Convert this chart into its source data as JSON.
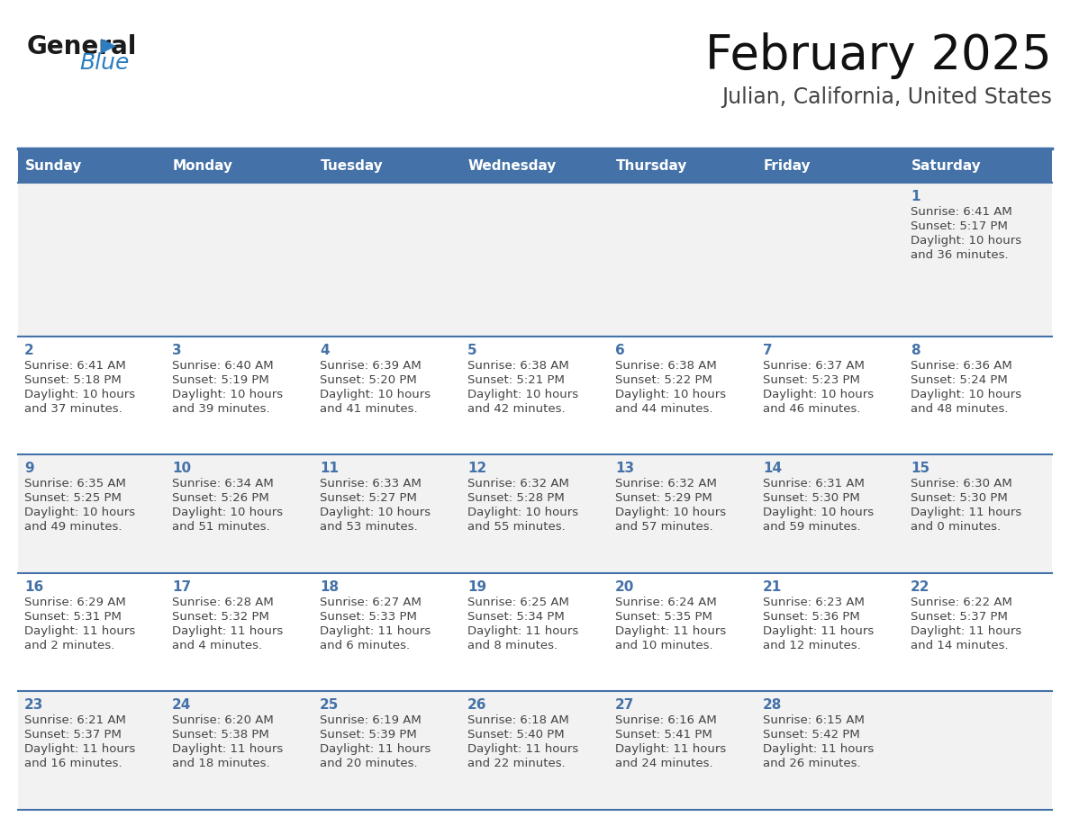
{
  "title": "February 2025",
  "subtitle": "Julian, California, United States",
  "header_bg_color": "#4472A8",
  "header_text_color": "#FFFFFF",
  "row_bg_colors": [
    "#F2F2F2",
    "#FFFFFF",
    "#F2F2F2",
    "#FFFFFF",
    "#F2F2F2"
  ],
  "border_color": "#4472A8",
  "day_number_color": "#4472A8",
  "cell_text_color": "#444444",
  "days_of_week": [
    "Sunday",
    "Monday",
    "Tuesday",
    "Wednesday",
    "Thursday",
    "Friday",
    "Saturday"
  ],
  "logo_general_color": "#1A1A1A",
  "logo_blue_color": "#2B7EC1",
  "calendar_data": [
    [
      null,
      null,
      null,
      null,
      null,
      null,
      {
        "day": "1",
        "sunrise": "6:41 AM",
        "sunset": "5:17 PM",
        "daylight_h": "10 hours",
        "daylight_m": "and 36 minutes."
      }
    ],
    [
      {
        "day": "2",
        "sunrise": "6:41 AM",
        "sunset": "5:18 PM",
        "daylight_h": "10 hours",
        "daylight_m": "and 37 minutes."
      },
      {
        "day": "3",
        "sunrise": "6:40 AM",
        "sunset": "5:19 PM",
        "daylight_h": "10 hours",
        "daylight_m": "and 39 minutes."
      },
      {
        "day": "4",
        "sunrise": "6:39 AM",
        "sunset": "5:20 PM",
        "daylight_h": "10 hours",
        "daylight_m": "and 41 minutes."
      },
      {
        "day": "5",
        "sunrise": "6:38 AM",
        "sunset": "5:21 PM",
        "daylight_h": "10 hours",
        "daylight_m": "and 42 minutes."
      },
      {
        "day": "6",
        "sunrise": "6:38 AM",
        "sunset": "5:22 PM",
        "daylight_h": "10 hours",
        "daylight_m": "and 44 minutes."
      },
      {
        "day": "7",
        "sunrise": "6:37 AM",
        "sunset": "5:23 PM",
        "daylight_h": "10 hours",
        "daylight_m": "and 46 minutes."
      },
      {
        "day": "8",
        "sunrise": "6:36 AM",
        "sunset": "5:24 PM",
        "daylight_h": "10 hours",
        "daylight_m": "and 48 minutes."
      }
    ],
    [
      {
        "day": "9",
        "sunrise": "6:35 AM",
        "sunset": "5:25 PM",
        "daylight_h": "10 hours",
        "daylight_m": "and 49 minutes."
      },
      {
        "day": "10",
        "sunrise": "6:34 AM",
        "sunset": "5:26 PM",
        "daylight_h": "10 hours",
        "daylight_m": "and 51 minutes."
      },
      {
        "day": "11",
        "sunrise": "6:33 AM",
        "sunset": "5:27 PM",
        "daylight_h": "10 hours",
        "daylight_m": "and 53 minutes."
      },
      {
        "day": "12",
        "sunrise": "6:32 AM",
        "sunset": "5:28 PM",
        "daylight_h": "10 hours",
        "daylight_m": "and 55 minutes."
      },
      {
        "day": "13",
        "sunrise": "6:32 AM",
        "sunset": "5:29 PM",
        "daylight_h": "10 hours",
        "daylight_m": "and 57 minutes."
      },
      {
        "day": "14",
        "sunrise": "6:31 AM",
        "sunset": "5:30 PM",
        "daylight_h": "10 hours",
        "daylight_m": "and 59 minutes."
      },
      {
        "day": "15",
        "sunrise": "6:30 AM",
        "sunset": "5:30 PM",
        "daylight_h": "11 hours",
        "daylight_m": "and 0 minutes."
      }
    ],
    [
      {
        "day": "16",
        "sunrise": "6:29 AM",
        "sunset": "5:31 PM",
        "daylight_h": "11 hours",
        "daylight_m": "and 2 minutes."
      },
      {
        "day": "17",
        "sunrise": "6:28 AM",
        "sunset": "5:32 PM",
        "daylight_h": "11 hours",
        "daylight_m": "and 4 minutes."
      },
      {
        "day": "18",
        "sunrise": "6:27 AM",
        "sunset": "5:33 PM",
        "daylight_h": "11 hours",
        "daylight_m": "and 6 minutes."
      },
      {
        "day": "19",
        "sunrise": "6:25 AM",
        "sunset": "5:34 PM",
        "daylight_h": "11 hours",
        "daylight_m": "and 8 minutes."
      },
      {
        "day": "20",
        "sunrise": "6:24 AM",
        "sunset": "5:35 PM",
        "daylight_h": "11 hours",
        "daylight_m": "and 10 minutes."
      },
      {
        "day": "21",
        "sunrise": "6:23 AM",
        "sunset": "5:36 PM",
        "daylight_h": "11 hours",
        "daylight_m": "and 12 minutes."
      },
      {
        "day": "22",
        "sunrise": "6:22 AM",
        "sunset": "5:37 PM",
        "daylight_h": "11 hours",
        "daylight_m": "and 14 minutes."
      }
    ],
    [
      {
        "day": "23",
        "sunrise": "6:21 AM",
        "sunset": "5:37 PM",
        "daylight_h": "11 hours",
        "daylight_m": "and 16 minutes."
      },
      {
        "day": "24",
        "sunrise": "6:20 AM",
        "sunset": "5:38 PM",
        "daylight_h": "11 hours",
        "daylight_m": "and 18 minutes."
      },
      {
        "day": "25",
        "sunrise": "6:19 AM",
        "sunset": "5:39 PM",
        "daylight_h": "11 hours",
        "daylight_m": "and 20 minutes."
      },
      {
        "day": "26",
        "sunrise": "6:18 AM",
        "sunset": "5:40 PM",
        "daylight_h": "11 hours",
        "daylight_m": "and 22 minutes."
      },
      {
        "day": "27",
        "sunrise": "6:16 AM",
        "sunset": "5:41 PM",
        "daylight_h": "11 hours",
        "daylight_m": "and 24 minutes."
      },
      {
        "day": "28",
        "sunrise": "6:15 AM",
        "sunset": "5:42 PM",
        "daylight_h": "11 hours",
        "daylight_m": "and 26 minutes."
      },
      null
    ]
  ]
}
